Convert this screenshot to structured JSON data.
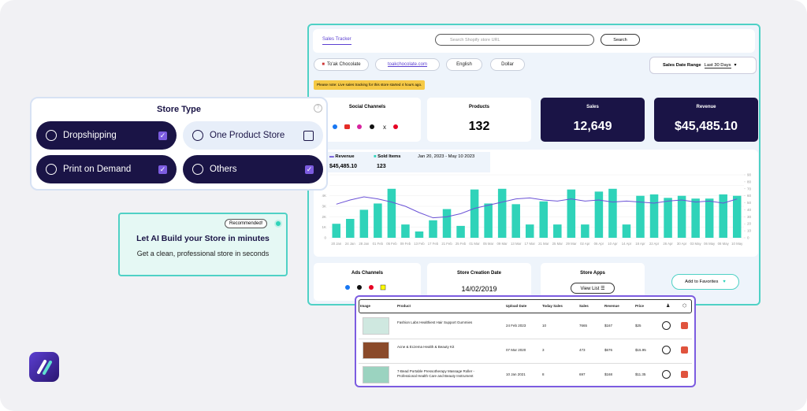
{
  "tracker": {
    "tab": "Sales Tracker",
    "search_placeholder": "Search Shopify store URL",
    "search_button": "Search",
    "chips": [
      "To'ak Chocolate",
      "toakchocolate.com",
      "English",
      "Dollar"
    ],
    "date_range_label": "Sales Date Range",
    "date_range_value": "Last 30 Days",
    "notice": "Please note: Live sales tracking for this store started 4 hours ago.",
    "cards": [
      {
        "label": "Social Channels"
      },
      {
        "label": "Products",
        "value": "132"
      },
      {
        "label": "Sales",
        "value": "12,649"
      },
      {
        "label": "Revenue",
        "value": "$45,485.10"
      }
    ],
    "legend_values": [
      "$45,485.10",
      "123"
    ],
    "period": "Jan 20, 2023 - May 10 2023",
    "bottom": {
      "ads": "Ads Channels",
      "creation_label": "Store Creation Date",
      "creation_date": "14/02/2019",
      "apps": "Store Apps",
      "view_list": "View List",
      "favorites": "Add to Favorites"
    }
  },
  "chart_data": {
    "type": "bar",
    "categories": [
      "20 Jan",
      "24 Jan",
      "28 Jan",
      "01 Feb",
      "05 Feb",
      "09 Feb",
      "13 Feb",
      "17 Feb",
      "21 Feb",
      "25 Feb",
      "01 Mar",
      "05 Mar",
      "09 Mar",
      "13 Mar",
      "17 Mar",
      "21 Mar",
      "25 Mar",
      "29 Mar",
      "02 Apr",
      "06 Apr",
      "10 Apr",
      "14 Apr",
      "18 Apr",
      "22 Apr",
      "26 Apr",
      "30 Apr",
      "03 May",
      "06 May",
      "08 May",
      "10 May"
    ],
    "series": [
      {
        "name": "Sold Items",
        "type": "bar",
        "axis": "y2",
        "color": "#2fd3b9",
        "values": [
          20,
          27,
          40,
          49,
          70,
          19,
          9,
          25,
          41,
          17,
          69,
          49,
          70,
          48,
          19,
          52,
          19,
          69,
          19,
          66,
          70,
          19,
          60,
          62,
          57,
          60,
          56,
          56,
          62,
          60
        ]
      },
      {
        "name": "Revenue",
        "type": "line",
        "color": "#6b52d6",
        "values": [
          3200,
          3600,
          3900,
          3700,
          3400,
          3000,
          2400,
          1900,
          2000,
          2300,
          2800,
          3100,
          3400,
          3700,
          3800,
          3600,
          3500,
          3700,
          3500,
          3600,
          3400,
          3500,
          3400,
          3300,
          3500,
          3600,
          3400,
          3500,
          3300,
          3700
        ]
      }
    ],
    "ylim": [
      0,
      6000
    ],
    "yticks": [
      0,
      {
        "value": 1000,
        "label": "1K"
      },
      {
        "value": 2000,
        "label": "2K"
      },
      {
        "value": 3000,
        "label": "3K"
      },
      {
        "value": 4000,
        "label": "4K"
      },
      {
        "value": 5000,
        "label": "5K"
      },
      {
        "value": 6000,
        "label": "6K"
      }
    ],
    "y2lim": [
      0,
      90
    ],
    "y2ticks": [
      0,
      10,
      20,
      30,
      40,
      50,
      60,
      70,
      80,
      90
    ],
    "grid": true
  },
  "store_type": {
    "title": "Store Type",
    "options": [
      {
        "label": "Dropshipping",
        "checked": true
      },
      {
        "label": "One Product Store",
        "checked": false
      },
      {
        "label": "Print on Demand",
        "checked": true
      },
      {
        "label": "Others",
        "checked": true
      }
    ]
  },
  "ai": {
    "badge": "Recommended!",
    "title": "Let AI Build your Store in minutes",
    "subtitle": "Get a clean, professional store in seconds"
  },
  "table": {
    "headers": [
      "Image",
      "Product",
      "Upload Date",
      "Today Sales",
      "Sales",
      "Revenue",
      "Price"
    ],
    "rows": [
      [
        "Fashion Labs Healthiest Hair Support Gummies",
        "24 Feb 2023",
        "10",
        "7665",
        "$167",
        "$25"
      ],
      [
        "Acne & Eczema Health & Beauty Kit",
        "07 Mar 2020",
        "3",
        "473",
        "$676",
        "$15.95"
      ],
      [
        "7-Bead Portable Pressotherapy Massage Roller - Professional Health Care and Beauty Instrument",
        "10 Jan 2021",
        "8",
        "697",
        "$168",
        "$11.35"
      ]
    ]
  }
}
